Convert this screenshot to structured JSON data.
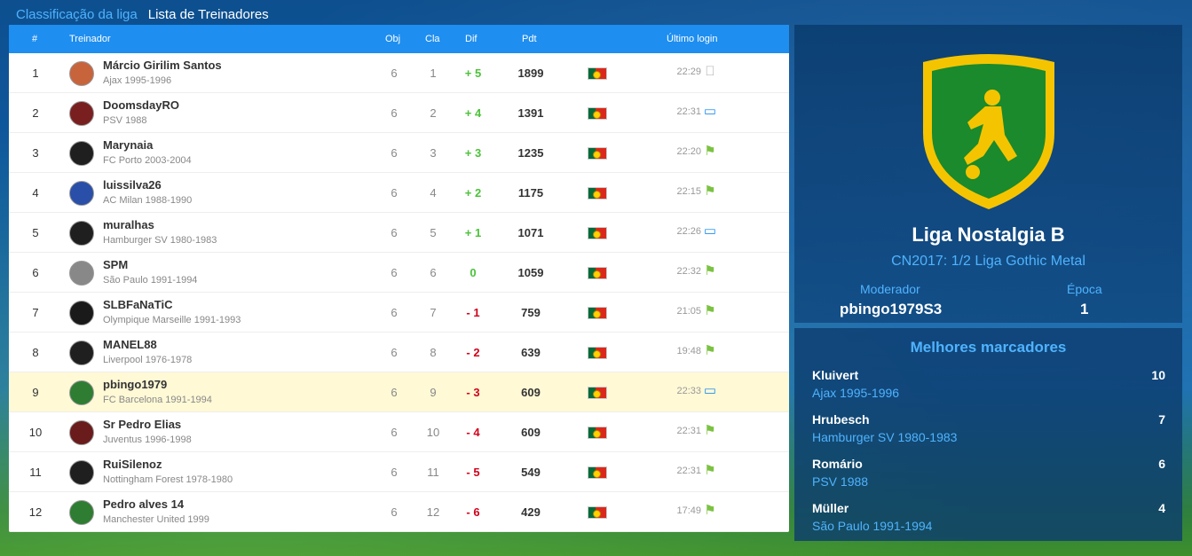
{
  "tabs": [
    {
      "label": "Classificação da liga"
    },
    {
      "label": "Lista de Treinadores"
    }
  ],
  "table": {
    "headers": {
      "pos": "#",
      "coach": "Treinador",
      "obj": "Obj",
      "cla": "Cla",
      "dif": "Dif",
      "pdt": "Pdt",
      "last_login": "Último login"
    },
    "rows": [
      {
        "pos": "1",
        "name": "Márcio Girilim Santos",
        "club": "Ajax 1995-1996",
        "obj": "6",
        "cla": "1",
        "dif": "+ 5",
        "pdt": "1899",
        "time": "22:29",
        "device": "apple-icon"
      },
      {
        "pos": "2",
        "name": "DoomsdayRO",
        "club": "PSV 1988",
        "obj": "6",
        "cla": "2",
        "dif": "+ 4",
        "pdt": "1391",
        "time": "22:31",
        "device": "desktop-icon"
      },
      {
        "pos": "3",
        "name": "Marynaia",
        "club": "FC Porto 2003-2004",
        "obj": "6",
        "cla": "3",
        "dif": "+ 3",
        "pdt": "1235",
        "time": "22:20",
        "device": "android-icon"
      },
      {
        "pos": "4",
        "name": "luissilva26",
        "club": "AC Milan 1988-1990",
        "obj": "6",
        "cla": "4",
        "dif": "+ 2",
        "pdt": "1175",
        "time": "22:15",
        "device": "android-icon"
      },
      {
        "pos": "5",
        "name": "muralhas",
        "club": "Hamburger SV 1980-1983",
        "obj": "6",
        "cla": "5",
        "dif": "+ 1",
        "pdt": "1071",
        "time": "22:26",
        "device": "desktop-icon"
      },
      {
        "pos": "6",
        "name": "SPM",
        "club": "São Paulo 1991-1994",
        "obj": "6",
        "cla": "6",
        "dif": "0",
        "pdt": "1059",
        "time": "22:32",
        "device": "android-icon"
      },
      {
        "pos": "7",
        "name": "SLBFaNaTiC",
        "club": "Olympique Marseille 1991-1993",
        "obj": "6",
        "cla": "7",
        "dif": "- 1",
        "pdt": "759",
        "time": "21:05",
        "device": "android-icon"
      },
      {
        "pos": "8",
        "name": "MANEL88",
        "club": "Liverpool 1976-1978",
        "obj": "6",
        "cla": "8",
        "dif": "- 2",
        "pdt": "639",
        "time": "19:48",
        "device": "android-icon"
      },
      {
        "pos": "9",
        "name": "pbingo1979",
        "club": "FC Barcelona 1991-1994",
        "obj": "6",
        "cla": "9",
        "dif": "- 3",
        "pdt": "609",
        "time": "22:33",
        "device": "desktop-icon",
        "highlight": true
      },
      {
        "pos": "10",
        "name": "Sr Pedro Elias",
        "club": "Juventus 1996-1998",
        "obj": "6",
        "cla": "10",
        "dif": "- 4",
        "pdt": "609",
        "time": "22:31",
        "device": "android-icon"
      },
      {
        "pos": "11",
        "name": "RuiSilenoz",
        "club": "Nottingham Forest 1978-1980",
        "obj": "6",
        "cla": "11",
        "dif": "- 5",
        "pdt": "549",
        "time": "22:31",
        "device": "android-icon"
      },
      {
        "pos": "12",
        "name": "Pedro alves 14",
        "club": "Manchester United 1999",
        "obj": "6",
        "cla": "12",
        "dif": "- 6",
        "pdt": "429",
        "time": "17:49",
        "device": "android-icon"
      }
    ]
  },
  "league": {
    "name": "Liga Nostalgia B",
    "subtitle": "CN2017: 1/2 Liga Gothic Metal",
    "moderator_label": "Moderador",
    "moderator": "pbingo1979S3",
    "season_label": "Época",
    "season": "1"
  },
  "scorers": {
    "title": "Melhores marcadores",
    "items": [
      {
        "name": "Kluivert",
        "club": "Ajax 1995-1996",
        "goals": "10"
      },
      {
        "name": "Hrubesch",
        "club": "Hamburger SV 1980-1983",
        "goals": "7"
      },
      {
        "name": "Romário",
        "club": "PSV 1988",
        "goals": "6"
      },
      {
        "name": "Müller",
        "club": "São Paulo 1991-1994",
        "goals": "4"
      }
    ]
  },
  "colors": {
    "header_blue": "#1e8ef0",
    "positive": "#4cc23a",
    "negative": "#d0021b",
    "link_blue": "#4fb3ff",
    "highlight_row": "#fff9d6"
  }
}
